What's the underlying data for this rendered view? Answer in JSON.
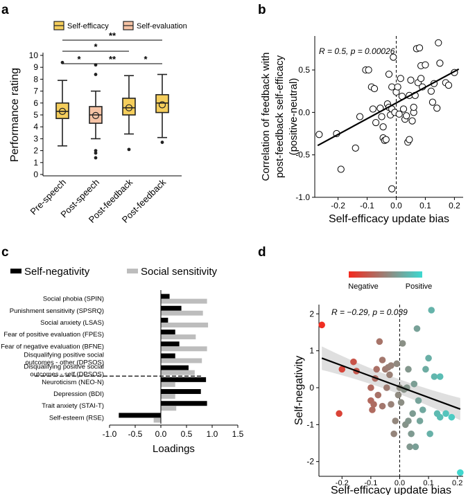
{
  "panel_labels": [
    "a",
    "b",
    "c",
    "d"
  ],
  "chart_data": [
    {
      "panel": "a",
      "type": "box",
      "ylabel": "Performance rating",
      "ylim": [
        0,
        10
      ],
      "yticks": [
        "0",
        "1",
        "2",
        "3",
        "4",
        "5",
        "6",
        "7",
        "8",
        "9",
        "10"
      ],
      "legend": [
        {
          "label": "Self-efficacy",
          "color": "#F5CE5C"
        },
        {
          "label": "Self-evaluation",
          "color": "#F6C3A5"
        }
      ],
      "categories": [
        "Pre-speech",
        "Post-speech",
        "Post-feedback",
        "Post-feedback"
      ],
      "boxes": [
        {
          "group": "Self-efficacy",
          "color": "#F5CE5C",
          "whisker_low": 2.4,
          "q1": 4.7,
          "median": 5.3,
          "q3": 6.0,
          "whisker_high": 7.9,
          "mean": 5.3,
          "outliers": [
            9.4
          ]
        },
        {
          "group": "Self-evaluation",
          "color": "#F6C3A5",
          "whisker_low": 3.0,
          "q1": 4.3,
          "median": 5.0,
          "q3": 5.7,
          "whisker_high": 7.0,
          "mean": 4.95,
          "outliers": [
            9.2,
            8.4,
            2.0,
            1.8,
            1.4
          ]
        },
        {
          "group": "Self-efficacy",
          "color": "#F5CE5C",
          "whisker_low": 3.4,
          "q1": 5.0,
          "median": 5.6,
          "q3": 6.4,
          "whisker_high": 8.3,
          "mean": 5.6,
          "outliers": [
            2.1
          ]
        },
        {
          "group": "Self-efficacy",
          "color": "#F5CE5C",
          "whisker_low": 3.1,
          "q1": 5.2,
          "median": 6.0,
          "q3": 6.7,
          "whisker_high": 8.4,
          "mean": 5.85,
          "outliers": [
            2.7
          ]
        }
      ],
      "significance": [
        {
          "from": 0,
          "to": 3,
          "label": "**"
        },
        {
          "from": 0,
          "to": 2,
          "label": "*"
        },
        {
          "from": 0,
          "to": 1,
          "label": "*"
        },
        {
          "from": 1,
          "to": 2,
          "label": "**"
        },
        {
          "from": 2,
          "to": 3,
          "label": "*"
        }
      ]
    },
    {
      "panel": "b",
      "type": "scatter",
      "xlabel": "Self-efficacy update bias",
      "ylabel_lines": [
        "Correlation of feedback with",
        "post-feedback self-efficacy",
        "(positive-neutral)"
      ],
      "annotation_stat": "R = 0.5, p = 0.00026",
      "xlim": [
        -0.28,
        0.23
      ],
      "ylim": [
        -1.0,
        0.9
      ],
      "xticks": [
        "-0.2",
        "-0.1",
        "0.0",
        "0.1",
        "0.2"
      ],
      "yticks": [
        "-1.0",
        "-0.5",
        "0.0",
        "0.5"
      ],
      "fit_line": {
        "x": [
          -0.27,
          0.215
        ],
        "y": [
          -0.39,
          0.51
        ]
      },
      "points": [
        [
          -0.265,
          -0.26
        ],
        [
          -0.205,
          -0.25
        ],
        [
          -0.19,
          -0.67
        ],
        [
          -0.14,
          -0.42
        ],
        [
          -0.125,
          -0.05
        ],
        [
          -0.105,
          0.5
        ],
        [
          -0.095,
          0.5
        ],
        [
          -0.085,
          0.3
        ],
        [
          -0.08,
          0.04
        ],
        [
          -0.075,
          0.28
        ],
        [
          -0.07,
          -0.12
        ],
        [
          -0.055,
          0.05
        ],
        [
          -0.05,
          -0.05
        ],
        [
          -0.045,
          -0.3
        ],
        [
          -0.045,
          -0.17
        ],
        [
          -0.04,
          -0.33
        ],
        [
          -0.035,
          -0.32
        ],
        [
          -0.03,
          0.1
        ],
        [
          -0.025,
          0.45
        ],
        [
          -0.025,
          0.06
        ],
        [
          -0.02,
          -0.03
        ],
        [
          -0.015,
          0.3
        ],
        [
          -0.015,
          -0.9
        ],
        [
          -0.015,
          0.04
        ],
        [
          -0.01,
          0.65
        ],
        [
          -0.005,
          0.0
        ],
        [
          0.0,
          0.24
        ],
        [
          0.005,
          0.3
        ],
        [
          0.01,
          -0.02
        ],
        [
          0.015,
          0.4
        ],
        [
          0.02,
          0.19
        ],
        [
          0.025,
          0.04
        ],
        [
          0.03,
          -0.08
        ],
        [
          0.035,
          -0.04
        ],
        [
          0.04,
          -0.35
        ],
        [
          0.045,
          -0.32
        ],
        [
          0.045,
          0.2
        ],
        [
          0.05,
          0.38
        ],
        [
          0.055,
          -0.1
        ],
        [
          0.06,
          0.0
        ],
        [
          0.06,
          0.06
        ],
        [
          0.065,
          0.2
        ],
        [
          0.07,
          0.75
        ],
        [
          0.075,
          0.35
        ],
        [
          0.08,
          0.76
        ],
        [
          0.085,
          0.55
        ],
        [
          0.085,
          0.4
        ],
        [
          0.09,
          0.3
        ],
        [
          0.1,
          0.56
        ],
        [
          0.12,
          0.25
        ],
        [
          0.125,
          0.12
        ],
        [
          0.13,
          0.34
        ],
        [
          0.14,
          0.05
        ],
        [
          0.145,
          0.82
        ],
        [
          0.15,
          0.58
        ],
        [
          0.17,
          0.35
        ],
        [
          0.18,
          0.32
        ],
        [
          0.2,
          0.47
        ]
      ]
    },
    {
      "panel": "c",
      "type": "bar",
      "orientation": "horizontal",
      "xlabel": "Loadings",
      "xlim": [
        -1.0,
        1.5
      ],
      "xticks": [
        "-1.0",
        "-0.5",
        "0.0",
        "0.5",
        "1.0",
        "1.5"
      ],
      "legend": [
        {
          "label": "Self-negativity",
          "color": "#000000"
        },
        {
          "label": "Social sensitivity",
          "color": "#BDBDBD"
        }
      ],
      "categories": [
        [
          "Social phobia (SPIN)"
        ],
        [
          "Punishment sensitivity (SPSRQ)"
        ],
        [
          "Social anxiety (LSAS)"
        ],
        [
          "Fear of positive evaluation (FPES)"
        ],
        [
          "Fear of negative evaluation (BFNE)"
        ],
        [
          "Disqualifying positive social",
          "outcomes - other (DPSOS)"
        ],
        [
          "Disqualifying positive social",
          "outcomes - self (DPSOS)"
        ],
        [
          "Neuroticism (NEO-N)"
        ],
        [
          "Depression (BDI)"
        ],
        [
          "Trait anxiety (STAI-T)"
        ],
        [
          "Self-esteem (RSE)"
        ]
      ],
      "series": [
        {
          "name": "Self-negativity",
          "color": "#000000",
          "values": [
            0.17,
            0.4,
            0.14,
            0.28,
            0.36,
            0.28,
            0.54,
            0.88,
            0.78,
            0.9,
            -0.82
          ]
        },
        {
          "name": "Social sensitivity",
          "color": "#BDBDBD",
          "values": [
            0.9,
            0.82,
            0.92,
            0.68,
            0.9,
            0.8,
            0.66,
            0.28,
            0.28,
            0.3,
            -0.14
          ]
        }
      ],
      "divider_after_index": 6
    },
    {
      "panel": "d",
      "type": "scatter",
      "xlabel": "Self-efficacy update bias",
      "ylabel": "Self-negativity",
      "annotation_stat": "R = −0.29, p = 0.039",
      "legend_low": "Negative",
      "legend_high": "Positive",
      "color_low": "#F42A1E",
      "color_high": "#3DD9D1",
      "xlim": [
        -0.28,
        0.22
      ],
      "ylim": [
        -2.4,
        2.25
      ],
      "xticks": [
        "-0.2",
        "-0.1",
        "0.0",
        "0.1",
        "0.2"
      ],
      "yticks": [
        "-2",
        "-1",
        "0",
        "1",
        "2"
      ],
      "fit_line": {
        "x": [
          -0.27,
          0.21
        ],
        "y": [
          0.8,
          -0.58
        ]
      },
      "points": [
        [
          -0.27,
          1.7
        ],
        [
          -0.21,
          -0.7
        ],
        [
          -0.2,
          0.5
        ],
        [
          -0.16,
          0.7
        ],
        [
          -0.15,
          0.45
        ],
        [
          -0.1,
          0.0
        ],
        [
          -0.1,
          -0.35
        ],
        [
          -0.095,
          -0.6
        ],
        [
          -0.09,
          -0.45
        ],
        [
          -0.085,
          0.25
        ],
        [
          -0.08,
          0.5
        ],
        [
          -0.075,
          -0.2
        ],
        [
          -0.07,
          1.25
        ],
        [
          -0.06,
          0.75
        ],
        [
          -0.06,
          -0.5
        ],
        [
          -0.05,
          0.5
        ],
        [
          -0.045,
          0.0
        ],
        [
          -0.04,
          0.55
        ],
        [
          -0.035,
          0.35
        ],
        [
          -0.03,
          0.6
        ],
        [
          -0.03,
          -0.45
        ],
        [
          -0.02,
          -1.25
        ],
        [
          -0.015,
          -0.9
        ],
        [
          -0.01,
          0.65
        ],
        [
          -0.005,
          -0.2
        ],
        [
          0.0,
          0.0
        ],
        [
          0.005,
          -0.4
        ],
        [
          0.01,
          1.2
        ],
        [
          0.015,
          -0.05
        ],
        [
          0.02,
          -1.0
        ],
        [
          0.025,
          0.0
        ],
        [
          0.03,
          0.5
        ],
        [
          0.03,
          -0.9
        ],
        [
          0.035,
          -1.6
        ],
        [
          0.04,
          -1.25
        ],
        [
          0.045,
          -0.7
        ],
        [
          0.05,
          0.1
        ],
        [
          0.055,
          -1.6
        ],
        [
          0.06,
          1.6
        ],
        [
          0.065,
          -0.35
        ],
        [
          0.07,
          -0.9
        ],
        [
          0.08,
          -0.6
        ],
        [
          0.09,
          0.5
        ],
        [
          0.1,
          0.8
        ],
        [
          0.105,
          -1.25
        ],
        [
          0.11,
          2.1
        ],
        [
          0.12,
          0.3
        ],
        [
          0.13,
          -0.7
        ],
        [
          0.14,
          0.3
        ],
        [
          0.14,
          -0.8
        ],
        [
          0.16,
          -0.7
        ],
        [
          0.18,
          -0.8
        ],
        [
          0.21,
          -2.3
        ]
      ]
    }
  ]
}
